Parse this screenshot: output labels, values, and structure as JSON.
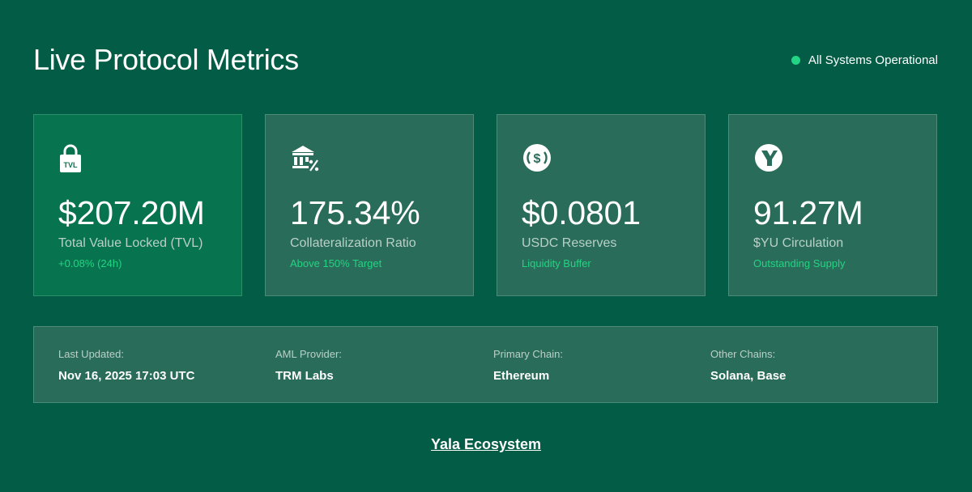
{
  "header": {
    "title": "Live Protocol Metrics",
    "status_text": "All Systems Operational",
    "status_color": "#22d483"
  },
  "cards": [
    {
      "icon": "lock-tvl-icon",
      "icon_text": "TVL",
      "value": "$207.20M",
      "label": "Total Value Locked (TVL)",
      "sub": "+0.08% (24h)"
    },
    {
      "icon": "bank-percent-icon",
      "value": "175.34%",
      "label": "Collateralization Ratio",
      "sub": "Above 150% Target"
    },
    {
      "icon": "dollar-coin-icon",
      "value": "$0.0801",
      "label": "USDC Reserves",
      "sub": "Liquidity Buffer"
    },
    {
      "icon": "yala-logo-icon",
      "value": "91.27M",
      "label": "$YU Circulation",
      "sub": "Outstanding Supply"
    }
  ],
  "info": [
    {
      "label": "Last Updated:",
      "value": "Nov 16, 2025 17:03 UTC"
    },
    {
      "label": "AML Provider:",
      "value": "TRM Labs"
    },
    {
      "label": "Primary Chain:",
      "value": "Ethereum"
    },
    {
      "label": "Other Chains:",
      "value": "Solana, Base"
    }
  ],
  "footer": {
    "link_text": "Yala Ecosystem"
  },
  "colors": {
    "background": "#035c45",
    "card": "#2a6c5a",
    "card_highlight": "#08734f",
    "accent": "#22d483"
  }
}
